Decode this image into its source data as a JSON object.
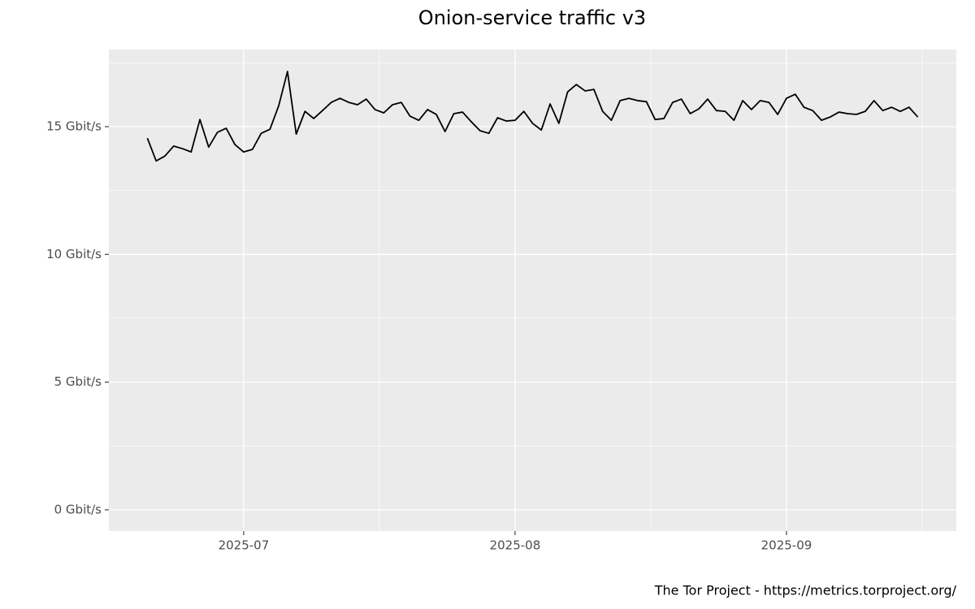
{
  "chart_data": {
    "type": "line",
    "title": "Onion-service traffic v3",
    "caption": "The Tor Project - https://metrics.torproject.org/",
    "categories": [
      null,
      null,
      null,
      null,
      null,
      null,
      null,
      null,
      null,
      null,
      null,
      "2025-07",
      null,
      null,
      null,
      null,
      null,
      null,
      null,
      null,
      null,
      null,
      null,
      null,
      null,
      null,
      null,
      null,
      null,
      null,
      null,
      null,
      null,
      null,
      null,
      null,
      null,
      null,
      null,
      null,
      null,
      null,
      "2025-08",
      null,
      null,
      null,
      null,
      null,
      null,
      null,
      null,
      null,
      null,
      null,
      null,
      null,
      null,
      null,
      null,
      null,
      null,
      null,
      null,
      null,
      null,
      null,
      null,
      null,
      null,
      null,
      null,
      null,
      null,
      "2025-09",
      null,
      null,
      null,
      null,
      null,
      null,
      null,
      null,
      null,
      null,
      null,
      null,
      null,
      null,
      null
    ],
    "values": [
      14.55,
      13.66,
      13.85,
      14.24,
      14.14,
      14.01,
      15.28,
      14.2,
      14.78,
      14.94,
      14.3,
      14.01,
      14.11,
      14.74,
      14.9,
      15.82,
      17.16,
      14.71,
      15.6,
      15.32,
      15.63,
      15.95,
      16.11,
      15.95,
      15.86,
      16.08,
      15.67,
      15.54,
      15.86,
      15.95,
      15.41,
      15.25,
      15.67,
      15.48,
      14.81,
      15.51,
      15.57,
      15.19,
      14.84,
      14.74,
      15.35,
      15.22,
      15.25,
      15.6,
      15.13,
      14.87,
      15.89,
      15.13,
      16.36,
      16.65,
      16.4,
      16.46,
      15.6,
      15.25,
      16.02,
      16.11,
      16.02,
      15.98,
      15.28,
      15.32,
      15.95,
      16.08,
      15.51,
      15.7,
      16.08,
      15.63,
      15.6,
      15.25,
      16.02,
      15.67,
      16.02,
      15.95,
      15.48,
      16.11,
      16.27,
      15.76,
      15.63,
      15.25,
      15.38,
      15.57,
      15.51,
      15.48,
      15.6,
      16.02,
      15.63,
      15.76,
      15.6,
      15.76,
      15.38
    ],
    "color": "#000000",
    "ylim": [
      -0.83,
      18.02
    ],
    "yticks": [
      {
        "value": 0,
        "label": "0 Gbit/s"
      },
      {
        "value": 5,
        "label": "5 Gbit/s"
      },
      {
        "value": 10,
        "label": "10 Gbit/s"
      },
      {
        "value": 15,
        "label": "15 Gbit/s"
      }
    ],
    "grid": true
  }
}
